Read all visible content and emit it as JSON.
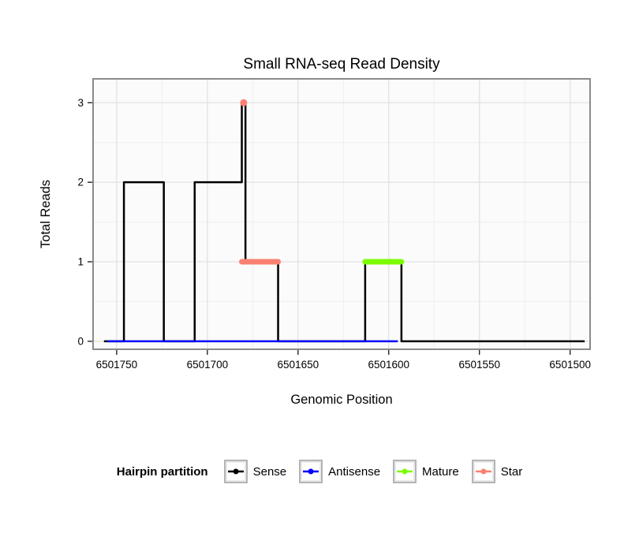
{
  "title": "Small RNA-seq Read Density",
  "chart_data": {
    "type": "line",
    "title": "Small RNA-seq Read Density",
    "xlabel": "Genomic Position",
    "ylabel": "Total Reads",
    "x_reversed": true,
    "xlim": [
      6501763,
      6501489
    ],
    "ylim": [
      -0.1,
      3.3
    ],
    "x_ticks": [
      6501750,
      6501700,
      6501650,
      6501600,
      6501550,
      6501500
    ],
    "x_minor": [
      6501725,
      6501675,
      6501625,
      6501575,
      6501525
    ],
    "y_ticks": [
      0,
      1,
      2,
      3
    ],
    "y_minor": [
      0.5,
      1.5,
      2.5
    ],
    "style": {
      "panel_fill": "#fbfbfb",
      "grid_major": "#e2e2e2",
      "grid_minor": "#efefef",
      "border": "#8a8a8a",
      "tick_color": "#000000"
    },
    "series": [
      {
        "name": "Sense",
        "color": "#000000",
        "width": 2.5,
        "cap": "butt",
        "points": [
          [
            6501757,
            0
          ],
          [
            6501746,
            0
          ],
          [
            6501746,
            2
          ],
          [
            6501724,
            2
          ],
          [
            6501724,
            0
          ],
          [
            6501707,
            0
          ],
          [
            6501707,
            2
          ],
          [
            6501681,
            2
          ],
          [
            6501681,
            3
          ],
          [
            6501679,
            3
          ],
          [
            6501679,
            1
          ],
          [
            6501661,
            1
          ],
          [
            6501661,
            0
          ],
          [
            6501613,
            0
          ],
          [
            6501613,
            1
          ],
          [
            6501593,
            1
          ],
          [
            6501593,
            0
          ],
          [
            6501492,
            0
          ]
        ]
      },
      {
        "name": "Antisense",
        "color": "#0000ff",
        "width": 2.5,
        "cap": "butt",
        "points": [
          [
            6501755,
            0
          ],
          [
            6501595,
            0
          ]
        ]
      },
      {
        "name": "Mature",
        "color": "#7cfc00",
        "width": 7,
        "cap": "round",
        "points": [
          [
            6501613,
            1
          ],
          [
            6501593,
            1
          ]
        ]
      },
      {
        "name": "Star",
        "color": "#fa8072",
        "width": 7,
        "cap": "round",
        "points": [
          [
            6501681,
            1
          ],
          [
            6501661,
            1
          ]
        ],
        "marker": [
          6501680,
          3
        ],
        "marker_radius": 4.5
      }
    ]
  },
  "legend": {
    "title": "Hairpin partition",
    "items": [
      {
        "label": "Sense",
        "color": "#000000"
      },
      {
        "label": "Antisense",
        "color": "#0000ff"
      },
      {
        "label": "Mature",
        "color": "#7cfc00"
      },
      {
        "label": "Star",
        "color": "#fa8072"
      }
    ]
  }
}
